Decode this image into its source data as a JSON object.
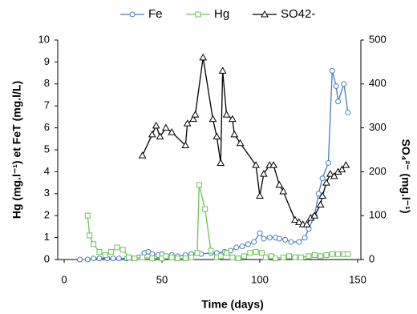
{
  "chart_data": {
    "type": "line",
    "xlabel": "Time (days)",
    "ylabel": "Hg (mg.l⁻¹) et FeT (mg.l/L)",
    "y2label": "SO₄²⁻ (mg.l⁻¹)",
    "xlim": [
      0,
      150
    ],
    "xticks": [
      0,
      50,
      100,
      150
    ],
    "ylim": [
      0,
      10
    ],
    "yticks": [
      0,
      1,
      2,
      3,
      4,
      5,
      6,
      7,
      8,
      9,
      10
    ],
    "y2lim": [
      0,
      500
    ],
    "y2ticks": [
      0,
      100,
      200,
      300,
      400,
      500
    ],
    "series": [
      {
        "name": "Fe",
        "color": "#4a7ebb",
        "marker": "circle",
        "x": [
          8,
          12,
          15,
          18,
          22,
          25,
          28,
          32,
          35,
          38,
          41,
          43,
          45,
          48,
          50,
          55,
          58,
          62,
          65,
          68,
          70,
          75,
          78,
          82,
          85,
          88,
          91,
          94,
          97,
          100,
          102,
          105,
          108,
          110,
          113,
          116,
          120,
          123,
          125,
          128,
          130,
          132,
          135,
          137,
          139,
          140,
          143,
          145
        ],
        "values": [
          0,
          0,
          0.05,
          0.05,
          0.05,
          0.05,
          0.05,
          0.05,
          0.05,
          0.1,
          0.3,
          0.35,
          0.25,
          0.2,
          0.25,
          0.2,
          0.15,
          0.2,
          0.25,
          0.3,
          0.25,
          0.3,
          0.3,
          0.35,
          0.4,
          0.55,
          0.6,
          0.7,
          0.8,
          1.2,
          0.95,
          1.0,
          1.0,
          0.95,
          0.9,
          0.8,
          0.8,
          1.0,
          1.4,
          2.0,
          3.0,
          3.7,
          4.4,
          8.6,
          7.9,
          7.2,
          8.0,
          6.7
        ]
      },
      {
        "name": "Hg",
        "color": "#6cc35a",
        "marker": "square",
        "x": [
          12,
          13,
          15,
          18,
          21,
          24,
          27,
          30,
          33,
          36,
          40,
          45,
          50,
          52,
          55,
          58,
          62,
          65,
          68,
          69,
          72,
          75,
          78,
          80,
          83,
          86,
          89,
          92,
          95,
          98,
          101,
          103,
          106,
          108,
          112,
          115,
          118,
          121,
          125,
          128,
          131,
          134,
          137,
          140,
          143,
          145
        ],
        "values": [
          2.0,
          1.1,
          0.7,
          0.35,
          0.2,
          0.35,
          0.55,
          0.45,
          0.1,
          0.05,
          0.1,
          0.05,
          0.05,
          0.15,
          0.1,
          0.05,
          0.05,
          0.1,
          0.3,
          3.4,
          2.3,
          0.4,
          0.1,
          0.15,
          0.3,
          0.1,
          0.05,
          0.15,
          0.3,
          0.35,
          0.3,
          0.1,
          0.15,
          0.05,
          0.1,
          0.15,
          0.1,
          0.1,
          0.15,
          0.2,
          0.15,
          0.2,
          0.25,
          0.25,
          0.25,
          0.25
        ]
      },
      {
        "name": "SO42-",
        "color": "#000000",
        "marker": "triangle",
        "axis": "y2",
        "x": [
          40,
          45,
          47,
          49,
          52,
          55,
          62,
          63,
          66,
          67,
          71,
          76,
          78,
          80,
          81,
          83,
          86,
          87,
          90,
          98,
          100,
          102,
          105,
          107,
          110,
          112,
          118,
          120,
          122,
          124,
          126,
          128,
          131,
          132,
          134,
          136,
          138,
          140,
          142,
          144
        ],
        "values": [
          237,
          285,
          305,
          280,
          300,
          290,
          260,
          310,
          320,
          330,
          460,
          320,
          280,
          220,
          430,
          330,
          320,
          285,
          265,
          215,
          145,
          195,
          215,
          215,
          170,
          155,
          90,
          85,
          80,
          80,
          95,
          100,
          125,
          145,
          175,
          195,
          190,
          200,
          205,
          215
        ]
      }
    ]
  }
}
